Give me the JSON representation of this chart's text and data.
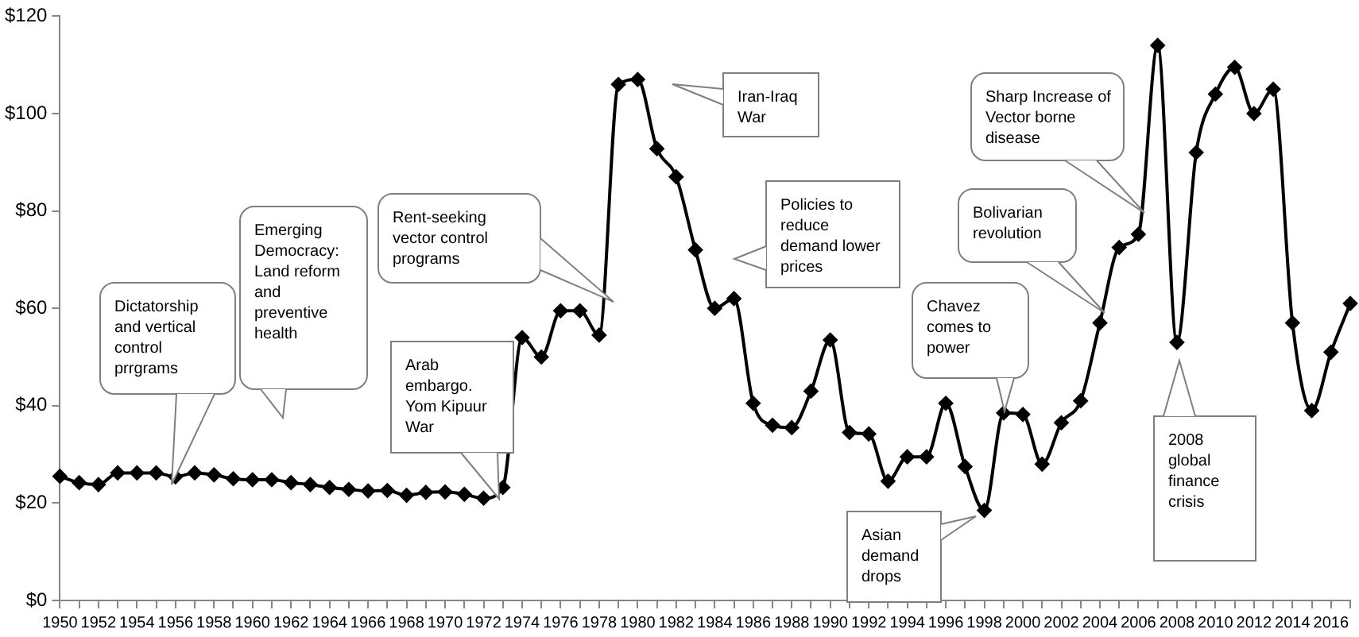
{
  "chart_data": {
    "type": "line",
    "categories": [
      "1950",
      null,
      "1952",
      null,
      "1954",
      null,
      "1956",
      null,
      "1958",
      null,
      "1960",
      null,
      "1962",
      null,
      "1964",
      null,
      "1966",
      null,
      "1968",
      null,
      "1970",
      null,
      "1972",
      null,
      "1974",
      null,
      "1976",
      null,
      "1978",
      null,
      "1980",
      null,
      "1982",
      null,
      "1984",
      null,
      "1986",
      null,
      "1988",
      null,
      "1990",
      null,
      "1992",
      null,
      "1994",
      null,
      "1996",
      null,
      "1998",
      null,
      "2000",
      null,
      "2002",
      null,
      "2004",
      null,
      "2006",
      null,
      "2008",
      null,
      "2010",
      null,
      "2012",
      null,
      "2014",
      null,
      "2016",
      null
    ],
    "values": [
      25.5,
      24.2,
      23.8,
      26.2,
      26.2,
      26.2,
      25.4,
      26.2,
      25.8,
      25.0,
      24.8,
      24.8,
      24.2,
      23.8,
      23.2,
      22.8,
      22.5,
      22.6,
      21.6,
      22.2,
      22.3,
      21.8,
      21.0,
      23.2,
      54,
      50,
      59.5,
      59.5,
      54.5,
      106,
      107,
      92.8,
      87,
      72,
      60,
      62,
      40.5,
      36,
      35.5,
      43,
      53.5,
      34.5,
      34.2,
      24.5,
      29.5,
      29.5,
      40.5,
      27.5,
      18.5,
      38.5,
      38.2,
      28,
      36.5,
      41,
      57,
      72.5,
      75.2,
      114,
      53,
      92,
      104,
      109.5,
      100,
      105,
      57,
      39,
      51,
      61
    ],
    "color": "#000000",
    "marker": "diamond",
    "ylim": [
      0,
      120
    ],
    "yticks": [
      {
        "value": 0,
        "label": "$0"
      },
      {
        "value": 20,
        "label": "$20"
      },
      {
        "value": 40,
        "label": "$40"
      },
      {
        "value": 60,
        "label": "$60"
      },
      {
        "value": 80,
        "label": "$80"
      },
      {
        "value": 100,
        "label": "$100"
      },
      {
        "value": 120,
        "label": "$120"
      }
    ],
    "annotations": [
      "Dictatorship and vertical control prrgrams",
      "Emerging Democracy: Land reform and preventive health",
      "Rent-seeking vector control programs",
      "Arab embargo. Yom Kipuur War",
      "Iran-Iraq War",
      "Policies to reduce demand lower prices",
      "Asian demand drops",
      "Chavez comes to power",
      "Bolivarian revolution",
      "Sharp Increase of Vector borne disease",
      "2008 global finance crisis"
    ]
  }
}
